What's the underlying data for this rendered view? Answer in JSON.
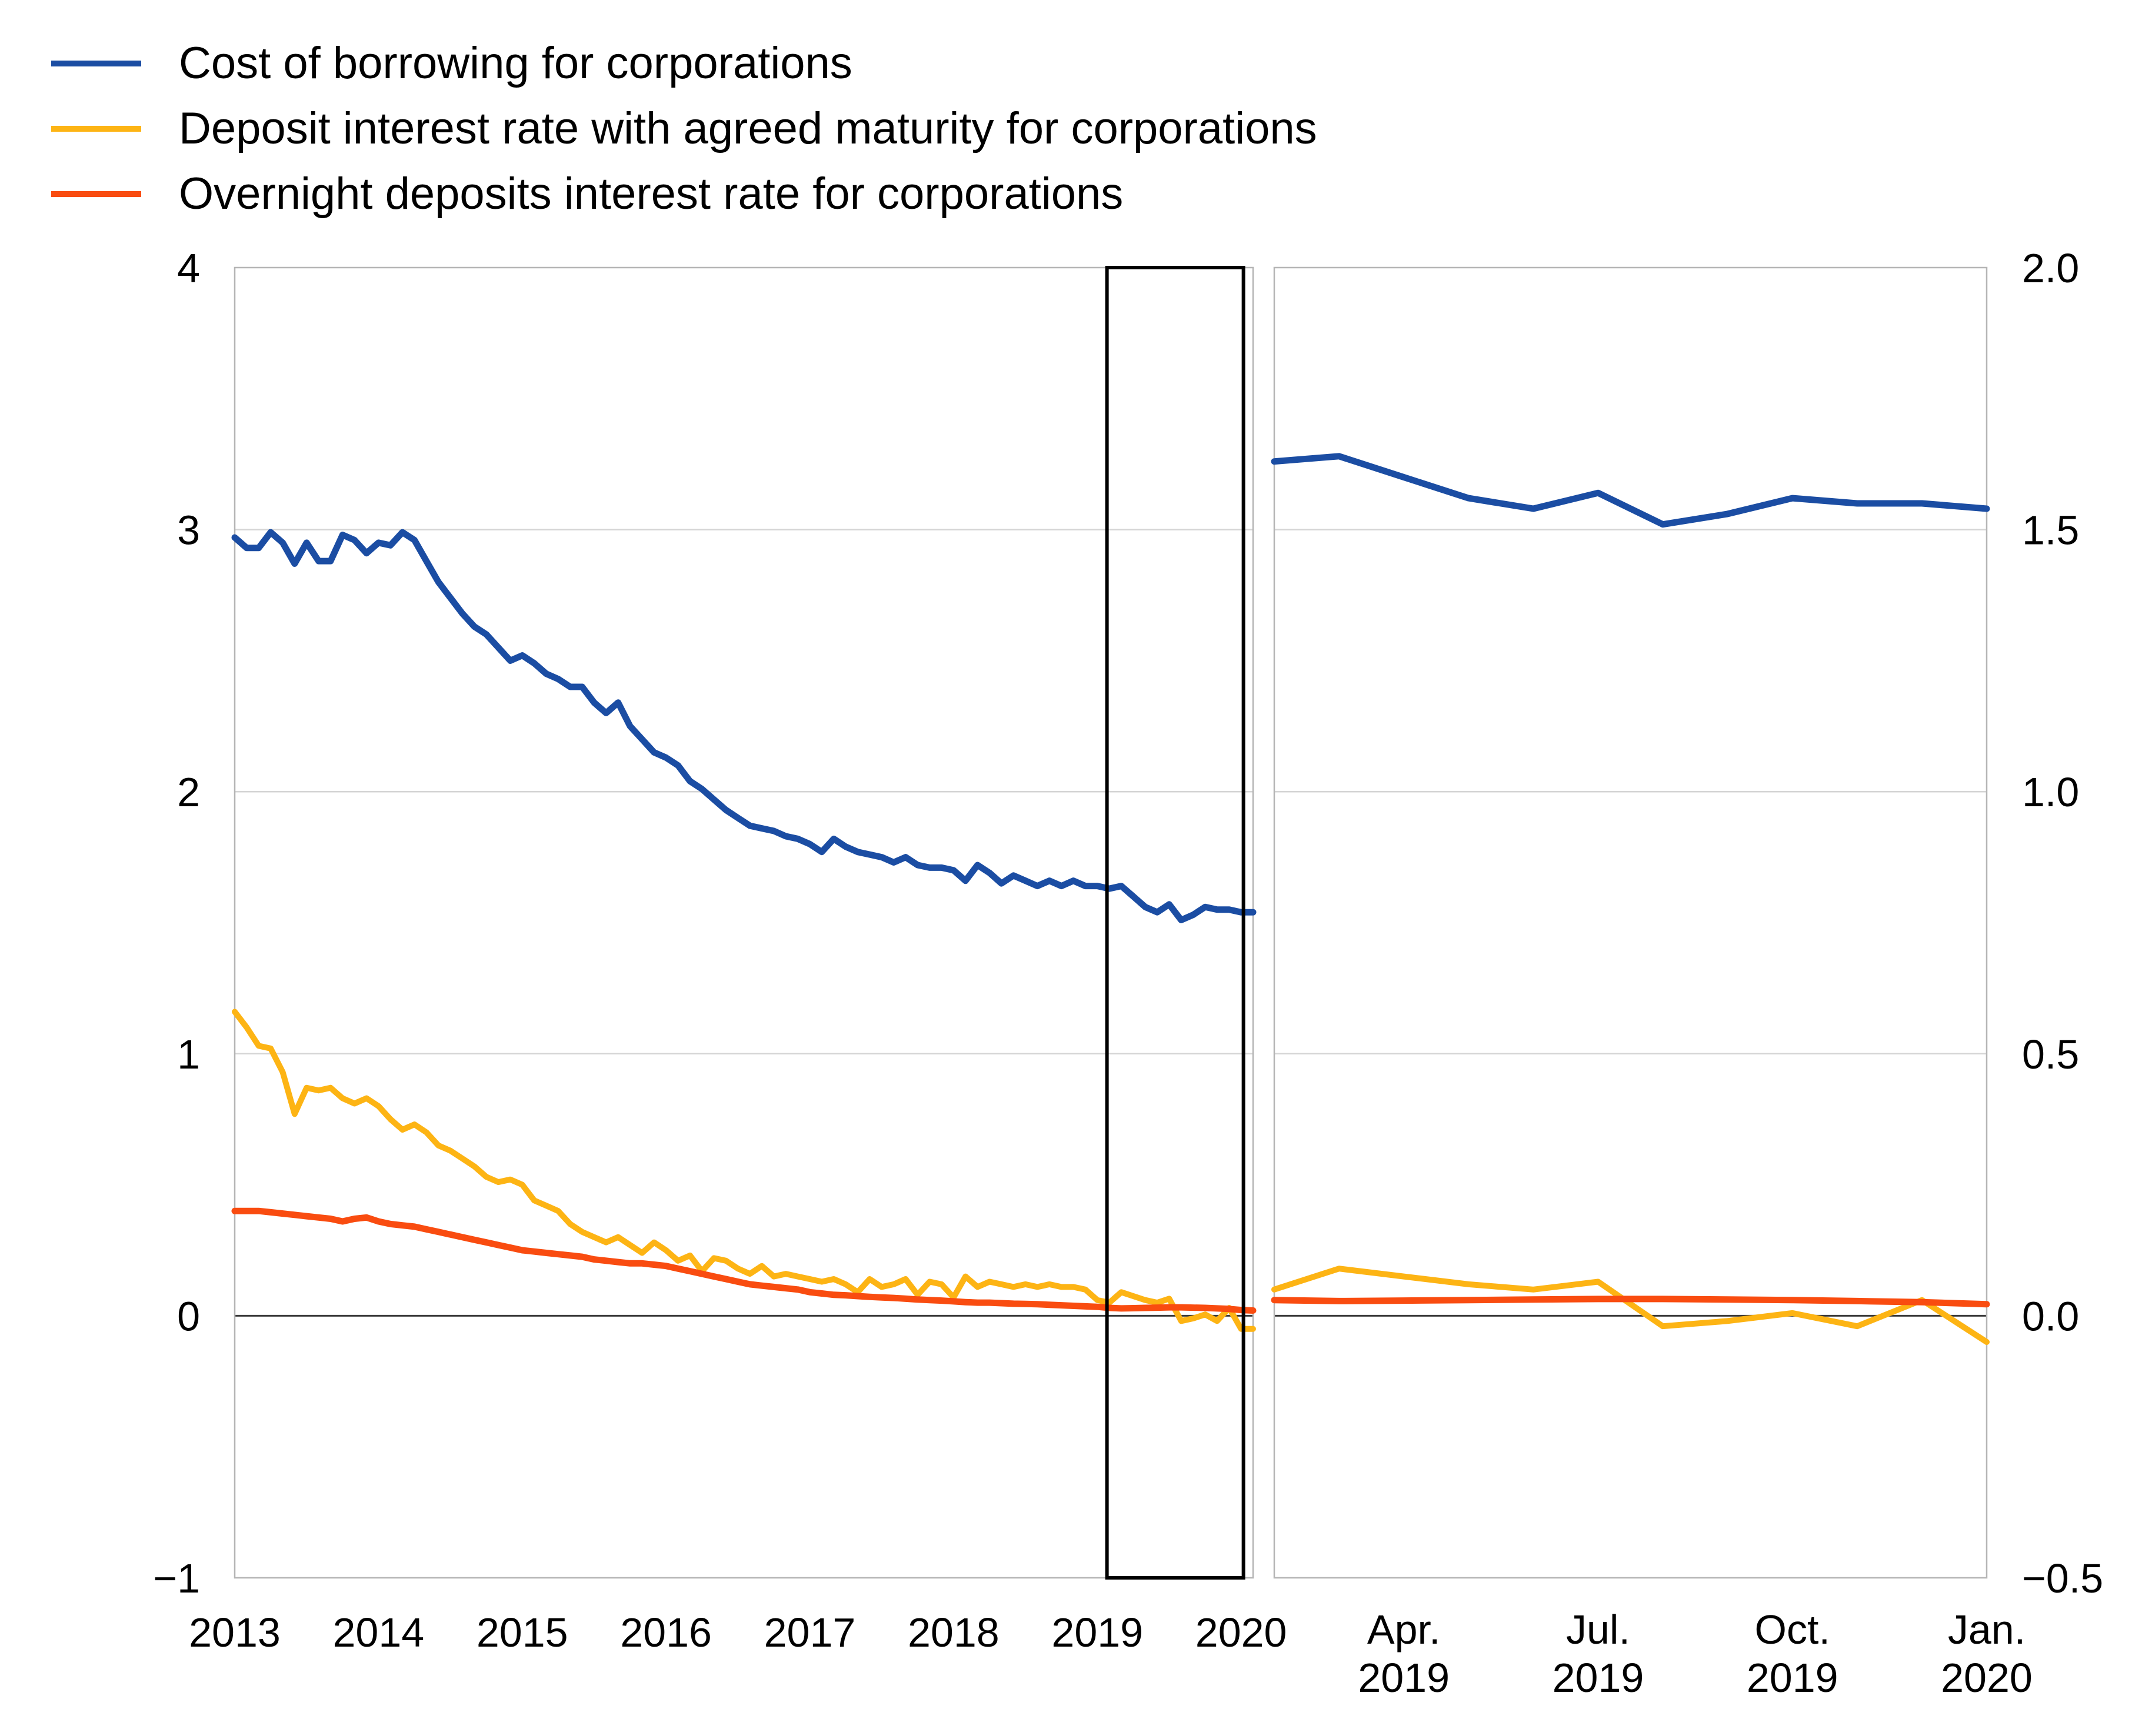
{
  "page_background": "#ffffff",
  "legend": {
    "items": [
      {
        "id": "cost-of-borrowing",
        "label": "Cost of borrowing for corporations",
        "color": "#1b4da3"
      },
      {
        "id": "deposit-agreed-maturity",
        "label": "Deposit interest rate with agreed maturity for corporations",
        "color": "#fdb414"
      },
      {
        "id": "overnight-deposits",
        "label": "Overnight deposits interest rate for corporations",
        "color": "#f94c10"
      }
    ]
  },
  "colors": {
    "blue": "#1b4da3",
    "yellow": "#fdb414",
    "red": "#f94c10",
    "gridline": "#d4d4d4",
    "zero_line": "#3a3a3a",
    "frame": "#b5b5b5",
    "highlight_box": "#000000",
    "text": "#000000"
  },
  "chart_data": [
    {
      "type": "line",
      "panel": "left",
      "title": "",
      "xlabel": "",
      "ylabel": "",
      "start_month": "2013-01",
      "end_month": "2020-02",
      "frequency": "monthly",
      "ylim": [
        -1,
        4
      ],
      "grid": "horizontal",
      "y_ticks": [
        {
          "label": "4",
          "value": 4
        },
        {
          "label": "3",
          "value": 3
        },
        {
          "label": "2",
          "value": 2
        },
        {
          "label": "1",
          "value": 1
        },
        {
          "label": "0",
          "value": 0
        },
        {
          "label": "−1",
          "value": -1
        }
      ],
      "y_gridlines": [
        3,
        2,
        1
      ],
      "zero_line": 0,
      "x_ticks": [
        {
          "label": "2013",
          "month": "2013-01"
        },
        {
          "label": "2014",
          "month": "2014-01"
        },
        {
          "label": "2015",
          "month": "2015-01"
        },
        {
          "label": "2016",
          "month": "2016-01"
        },
        {
          "label": "2017",
          "month": "2017-01"
        },
        {
          "label": "2018",
          "month": "2018-01"
        },
        {
          "label": "2019",
          "month": "2019-01"
        },
        {
          "label": "2020",
          "month": "2020-01"
        }
      ],
      "highlight_box": {
        "from_month": "2019-02",
        "to_month": "2020-01"
      },
      "series": [
        {
          "id": "cost-of-borrowing",
          "name": "Cost of borrowing for corporations",
          "color": "#1b4da3",
          "values": [
            2.97,
            2.93,
            2.93,
            2.99,
            2.95,
            2.87,
            2.95,
            2.88,
            2.88,
            2.98,
            2.96,
            2.91,
            2.95,
            2.94,
            2.99,
            2.96,
            2.88,
            2.8,
            2.74,
            2.68,
            2.63,
            2.6,
            2.55,
            2.5,
            2.52,
            2.49,
            2.45,
            2.43,
            2.4,
            2.4,
            2.34,
            2.3,
            2.34,
            2.25,
            2.2,
            2.15,
            2.13,
            2.1,
            2.04,
            2.01,
            1.97,
            1.93,
            1.9,
            1.87,
            1.86,
            1.85,
            1.83,
            1.82,
            1.8,
            1.77,
            1.82,
            1.79,
            1.77,
            1.76,
            1.75,
            1.73,
            1.75,
            1.72,
            1.71,
            1.71,
            1.7,
            1.66,
            1.72,
            1.69,
            1.65,
            1.68,
            1.66,
            1.64,
            1.66,
            1.64,
            1.66,
            1.64,
            1.64,
            1.63,
            1.64,
            1.6,
            1.56,
            1.54,
            1.57,
            1.51,
            1.53,
            1.56,
            1.55,
            1.55,
            1.54,
            1.54
          ]
        },
        {
          "id": "deposit-agreed-maturity",
          "name": "Deposit interest rate with agreed maturity for corporations",
          "color": "#fdb414",
          "values": [
            1.16,
            1.1,
            1.03,
            1.02,
            0.93,
            0.77,
            0.87,
            0.86,
            0.87,
            0.83,
            0.81,
            0.83,
            0.8,
            0.75,
            0.71,
            0.73,
            0.7,
            0.65,
            0.63,
            0.6,
            0.57,
            0.53,
            0.51,
            0.52,
            0.5,
            0.44,
            0.42,
            0.4,
            0.35,
            0.32,
            0.3,
            0.28,
            0.3,
            0.27,
            0.24,
            0.28,
            0.25,
            0.21,
            0.23,
            0.17,
            0.22,
            0.21,
            0.18,
            0.16,
            0.19,
            0.15,
            0.16,
            0.15,
            0.14,
            0.13,
            0.14,
            0.12,
            0.09,
            0.14,
            0.11,
            0.12,
            0.14,
            0.08,
            0.13,
            0.12,
            0.07,
            0.15,
            0.11,
            0.13,
            0.12,
            0.11,
            0.12,
            0.11,
            0.12,
            0.11,
            0.11,
            0.1,
            0.06,
            0.05,
            0.09,
            0.075,
            0.06,
            0.05,
            0.065,
            -0.02,
            -0.01,
            0.005,
            -0.02,
            0.03,
            -0.05,
            -0.05
          ]
        },
        {
          "id": "overnight-deposits",
          "name": "Overnight deposits interest rate for corporations",
          "color": "#f94c10",
          "values": [
            0.4,
            0.4,
            0.4,
            0.395,
            0.39,
            0.385,
            0.38,
            0.375,
            0.37,
            0.36,
            0.37,
            0.375,
            0.36,
            0.35,
            0.345,
            0.34,
            0.33,
            0.32,
            0.31,
            0.3,
            0.29,
            0.28,
            0.27,
            0.26,
            0.25,
            0.245,
            0.24,
            0.235,
            0.23,
            0.225,
            0.215,
            0.21,
            0.205,
            0.2,
            0.2,
            0.195,
            0.19,
            0.18,
            0.17,
            0.16,
            0.15,
            0.14,
            0.13,
            0.12,
            0.115,
            0.11,
            0.105,
            0.1,
            0.09,
            0.085,
            0.08,
            0.078,
            0.075,
            0.072,
            0.07,
            0.068,
            0.065,
            0.062,
            0.06,
            0.058,
            0.055,
            0.052,
            0.05,
            0.05,
            0.048,
            0.046,
            0.045,
            0.044,
            0.042,
            0.04,
            0.038,
            0.036,
            0.034,
            0.03,
            0.028,
            0.029,
            0.03,
            0.031,
            0.032,
            0.032,
            0.031,
            0.03,
            0.028,
            0.026,
            0.022,
            0.02
          ]
        }
      ]
    },
    {
      "type": "line",
      "panel": "right",
      "title": "",
      "xlabel": "",
      "ylabel": "",
      "start_month": "2019-02",
      "end_month": "2020-01",
      "frequency": "monthly",
      "ylim": [
        -0.5,
        2.0
      ],
      "grid": "horizontal",
      "y_ticks": [
        {
          "label": "2.0",
          "value": 2.0
        },
        {
          "label": "1.5",
          "value": 1.5
        },
        {
          "label": "1.0",
          "value": 1.0
        },
        {
          "label": "0.5",
          "value": 0.5
        },
        {
          "label": "0.0",
          "value": 0.0
        },
        {
          "label": "−0.5",
          "value": -0.5
        }
      ],
      "y_gridlines": [
        1.5,
        1.0,
        0.5
      ],
      "zero_line": 0,
      "x_ticks": [
        {
          "label_line1": "Apr.",
          "label_line2": "2019",
          "month": "2019-04"
        },
        {
          "label_line1": "Jul.",
          "label_line2": "2019",
          "month": "2019-07"
        },
        {
          "label_line1": "Oct.",
          "label_line2": "2019",
          "month": "2019-10"
        },
        {
          "label_line1": "Jan.",
          "label_line2": "2020",
          "month": "2020-01"
        }
      ],
      "series": [
        {
          "id": "cost-of-borrowing",
          "name": "Cost of borrowing for corporations",
          "color": "#1b4da3",
          "values": [
            1.63,
            1.64,
            1.6,
            1.56,
            1.54,
            1.57,
            1.51,
            1.53,
            1.56,
            1.55,
            1.55,
            1.54
          ]
        },
        {
          "id": "deposit-agreed-maturity",
          "name": "Deposit interest rate with agreed maturity for corporations",
          "color": "#fdb414",
          "values": [
            0.05,
            0.09,
            0.075,
            0.06,
            0.05,
            0.065,
            -0.02,
            -0.01,
            0.005,
            -0.02,
            0.03,
            -0.05
          ]
        },
        {
          "id": "overnight-deposits",
          "name": "Overnight deposits interest rate for corporations",
          "color": "#f94c10",
          "values": [
            0.03,
            0.028,
            0.029,
            0.03,
            0.031,
            0.032,
            0.032,
            0.031,
            0.03,
            0.028,
            0.026,
            0.022
          ]
        }
      ]
    }
  ]
}
